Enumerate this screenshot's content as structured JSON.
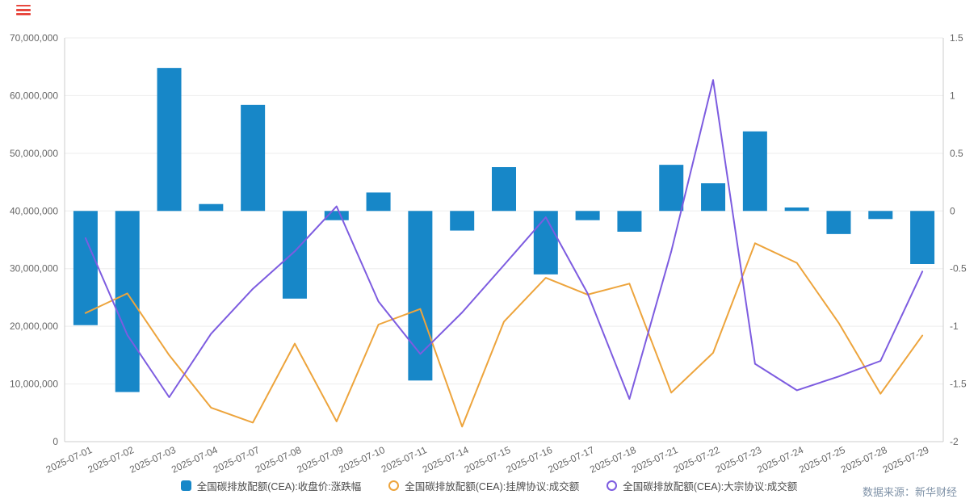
{
  "toolbar": {
    "menu_icon_color": "#e8483f"
  },
  "source_note": "数据来源：新华财经",
  "legend": {
    "items": [
      {
        "label": "全国碳排放配额(CEA):收盘价:涨跌幅",
        "marker": "square",
        "color": "#1787c8"
      },
      {
        "label": "全国碳排放配额(CEA):挂牌协议:成交额",
        "marker": "ring",
        "color": "#eda43c"
      },
      {
        "label": "全国碳排放配额(CEA):大宗协议:成交额",
        "marker": "ring",
        "color": "#7d5ce0"
      }
    ]
  },
  "chart_data": {
    "type": "bar",
    "subtype": "bar+line dual axis",
    "categories": [
      "2025-07-01",
      "2025-07-02",
      "2025-07-03",
      "2025-07-04",
      "2025-07-07",
      "2025-07-08",
      "2025-07-09",
      "2025-07-10",
      "2025-07-11",
      "2025-07-14",
      "2025-07-15",
      "2025-07-16",
      "2025-07-17",
      "2025-07-18",
      "2025-07-21",
      "2025-07-22",
      "2025-07-23",
      "2025-07-24",
      "2025-07-25",
      "2025-07-28",
      "2025-07-29"
    ],
    "series": [
      {
        "name": "全国碳排放配额(CEA):收盘价:涨跌幅",
        "type": "bar",
        "axis": "right",
        "color": "#1787c8",
        "values": [
          -0.99,
          -1.57,
          1.24,
          0.06,
          0.92,
          -0.76,
          -0.08,
          0.16,
          -1.47,
          -0.17,
          0.38,
          -0.55,
          -0.08,
          -0.18,
          0.4,
          0.24,
          0.69,
          0.03,
          -0.2,
          -0.07,
          -0.46
        ]
      },
      {
        "name": "全国碳排放配额(CEA):挂牌协议:成交额",
        "type": "line",
        "axis": "left",
        "color": "#eda43c",
        "values": [
          22300000,
          25700000,
          15000000,
          5900000,
          3300000,
          17000000,
          3500000,
          20300000,
          23000000,
          2600000,
          20800000,
          28400000,
          25500000,
          27400000,
          8500000,
          15400000,
          34400000,
          31000000,
          20600000,
          8300000,
          18400000
        ]
      },
      {
        "name": "全国碳排放配额(CEA):大宗协议:成交额",
        "type": "line",
        "axis": "left",
        "color": "#7d5ce0",
        "values": [
          35300000,
          18500000,
          7700000,
          18700000,
          26500000,
          33000000,
          40800000,
          24300000,
          15200000,
          22400000,
          30600000,
          38900000,
          25700000,
          7400000,
          33000000,
          62700000,
          13500000,
          8900000,
          11300000,
          14000000,
          29500000
        ]
      }
    ],
    "left_axis": {
      "min": 0,
      "max": 70000000,
      "tick_labels": [
        "0",
        "10,000,000",
        "20,000,000",
        "30,000,000",
        "40,000,000",
        "50,000,000",
        "60,000,000",
        "70,000,000"
      ]
    },
    "right_axis": {
      "min": -2,
      "max": 1.5,
      "tick_labels": [
        "-2",
        "-1.5",
        "-1",
        "-0.5",
        "0",
        "0.5",
        "1",
        "1.5"
      ]
    },
    "grid": true,
    "legend_position": "bottom"
  }
}
